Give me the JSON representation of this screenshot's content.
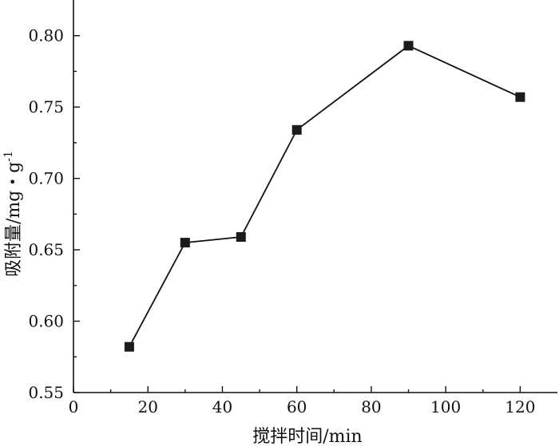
{
  "chart_data": {
    "type": "line",
    "title": "",
    "xlabel": "搅拌时间/min",
    "ylabel": "吸附量/mg・g",
    "ylabel_superscript": "-1",
    "xlim": [
      0,
      130
    ],
    "ylim": [
      0.55,
      0.825
    ],
    "xticks": [
      0,
      20,
      40,
      60,
      80,
      100,
      120
    ],
    "yticks": [
      0.55,
      0.6,
      0.65,
      0.7,
      0.75,
      0.8
    ],
    "xtick_labels": [
      "0",
      "20",
      "40",
      "60",
      "80",
      "100",
      "120"
    ],
    "ytick_labels": [
      "0.55",
      "0.60",
      "0.65",
      "0.70",
      "0.75",
      "0.80"
    ],
    "grid": false,
    "marker": "square",
    "series": [
      {
        "x": [
          15,
          30,
          45,
          60,
          90,
          120
        ],
        "values": [
          0.582,
          0.655,
          0.659,
          0.734,
          0.793,
          0.757
        ]
      }
    ]
  }
}
